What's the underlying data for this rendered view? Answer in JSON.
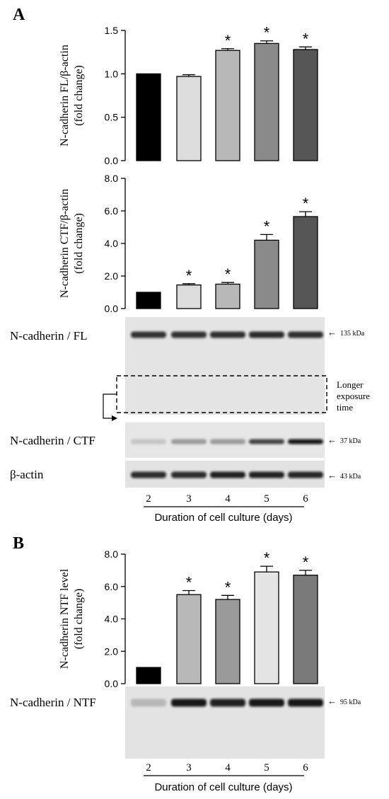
{
  "panel_a_label": "A",
  "panel_b_label": "B",
  "chart_data": [
    {
      "id": "fl",
      "type": "bar",
      "categories": [
        "2",
        "3",
        "4",
        "5",
        "6"
      ],
      "values": [
        1.0,
        0.97,
        1.27,
        1.35,
        1.28
      ],
      "errors": [
        0.0,
        0.02,
        0.02,
        0.03,
        0.03
      ],
      "significant": [
        false,
        false,
        true,
        true,
        true
      ],
      "bar_colors": [
        "#000000",
        "#dcdcdc",
        "#b8b8b8",
        "#8a8a8a",
        "#555555"
      ],
      "ylabel_line1": "N-cadherin FL/β-actin",
      "ylabel_line2": "(fold change)",
      "ylim": [
        0,
        1.5
      ],
      "yticks": [
        0,
        0.5,
        1.0,
        1.5
      ],
      "ytick_labels": [
        "0.0",
        "0.5",
        "1.0",
        "1.5"
      ],
      "grid": false
    },
    {
      "id": "ctf",
      "type": "bar",
      "categories": [
        "2",
        "3",
        "4",
        "5",
        "6"
      ],
      "values": [
        1.0,
        1.45,
        1.5,
        4.2,
        5.65
      ],
      "errors": [
        0.0,
        0.08,
        0.1,
        0.35,
        0.3
      ],
      "significant": [
        false,
        true,
        true,
        true,
        true
      ],
      "bar_colors": [
        "#000000",
        "#dcdcdc",
        "#b8b8b8",
        "#8a8a8a",
        "#555555"
      ],
      "ylabel_line1": "N-cadherin CTF/β-actin",
      "ylabel_line2": "(fold change)",
      "ylim": [
        0,
        8
      ],
      "yticks": [
        0,
        2,
        4,
        6,
        8
      ],
      "ytick_labels": [
        "0.0",
        "2.0",
        "4.0",
        "6.0",
        "8.0"
      ],
      "grid": false
    },
    {
      "id": "ntf",
      "type": "bar",
      "categories": [
        "2",
        "3",
        "4",
        "5",
        "6"
      ],
      "values": [
        1.0,
        5.5,
        5.2,
        6.9,
        6.7
      ],
      "errors": [
        0.0,
        0.25,
        0.25,
        0.35,
        0.3
      ],
      "significant": [
        false,
        true,
        true,
        true,
        true
      ],
      "bar_colors": [
        "#000000",
        "#b8b8b8",
        "#9a9a9a",
        "#e4e4e4",
        "#7a7a7a"
      ],
      "ylabel_line1": "N-cadherin NTF level",
      "ylabel_line2": "(fold change)",
      "ylim": [
        0,
        8
      ],
      "yticks": [
        0,
        2,
        4,
        6,
        8
      ],
      "ytick_labels": [
        "0.0",
        "2.0",
        "4.0",
        "6.0",
        "8.0"
      ],
      "grid": false
    }
  ],
  "sig_marker": "*",
  "blots": {
    "fl": {
      "label": "N-cadherin / FL",
      "kda": "135 kDa",
      "intensity": [
        0.82,
        0.82,
        0.84,
        0.86,
        0.84
      ]
    },
    "ctf": {
      "label": "N-cadherin / CTF",
      "kda": "37 kDa",
      "intensity": [
        0.15,
        0.35,
        0.35,
        0.75,
        0.95
      ]
    },
    "actin": {
      "label": "β-actin",
      "kda": "43 kDa",
      "intensity": [
        0.85,
        0.85,
        0.9,
        0.9,
        0.88
      ]
    },
    "ntf": {
      "label": "N-cadherin / NTF",
      "kda": "95 kDa",
      "intensity": [
        0.2,
        0.95,
        0.9,
        0.95,
        0.95
      ]
    }
  },
  "longer_exposure": [
    "Longer",
    "exposure",
    "time"
  ],
  "lane_labels": [
    "2",
    "3",
    "4",
    "5",
    "6"
  ],
  "xlabel": "Duration of cell culture (days)",
  "arrow_glyph": "←"
}
